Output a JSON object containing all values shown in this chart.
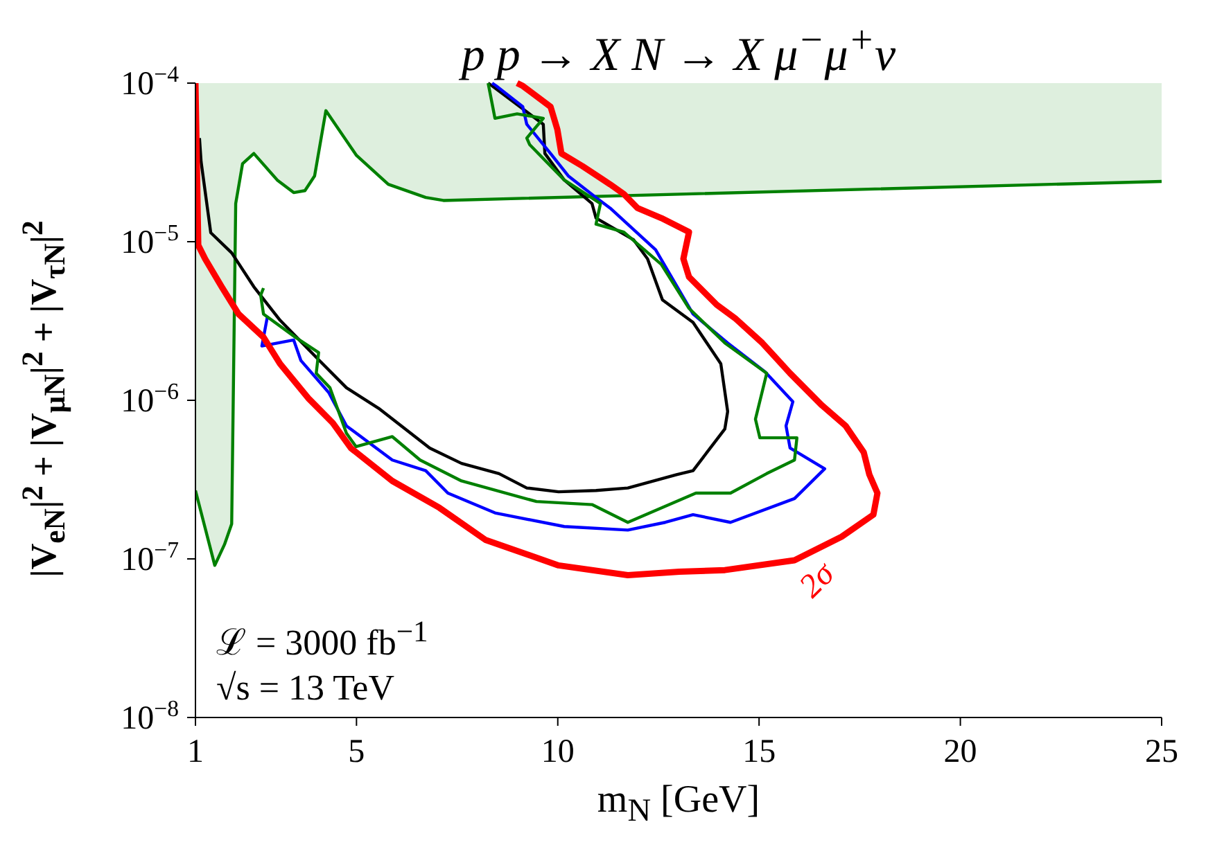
{
  "chart_data": {
    "type": "line",
    "title": "p p → X N → X μ$^{−}$μ$^{+}$ν",
    "xlabel": "m$_{N}$ [GeV]",
    "ylabel": "|V$_{eN}$|$^{2}$ + |V$_{μN}$|$^{2}$ + |V$_{τN}$|$^{2}$",
    "xlim": [
      1,
      25
    ],
    "xticks": [
      1,
      5,
      10,
      15,
      20,
      25
    ],
    "ylim": [
      1e-08,
      0.0001
    ],
    "yticks": [
      {
        "value": 1e-08,
        "label": "10$^{−8}$"
      },
      {
        "value": 1e-07,
        "label": "10$^{−7}$"
      },
      {
        "value": 1e-06,
        "label": "10$^{−6}$"
      },
      {
        "value": 1e-05,
        "label": "10$^{−5}$"
      },
      {
        "value": 0.0001,
        "label": "10$^{−4}$"
      }
    ],
    "log": "y",
    "marker": "none",
    "series": [
      {
        "color": "#008000",
        "x": [
          1,
          1.48,
          1.72,
          1.9,
          2,
          2.17,
          2.45,
          3.03,
          3.44,
          3.72,
          3.96,
          4.24,
          5,
          5.79,
          6.72,
          7.16,
          25
        ],
        "values": [
          2.7e-07,
          9.1e-08,
          1.23e-07,
          1.66e-07,
          1.74e-05,
          3.1e-05,
          3.6e-05,
          2.45e-05,
          2.04e-05,
          2.1e-05,
          2.6e-05,
          6.7e-05,
          3.5e-05,
          2.3e-05,
          1.9e-05,
          1.82e-05,
          2.4e-05
        ],
        "lower": [
          2.7e-07,
          9.1e-08,
          1.23e-07,
          1.66e-07,
          1.74e-05,
          3.1e-05,
          3.6e-05,
          2.45e-05,
          2.04e-05,
          2.1e-05,
          2.6e-05,
          6.7e-05,
          3.5e-05,
          2.3e-05,
          1.9e-05,
          1.82e-05,
          2.4e-05
        ],
        "upper": [
          0.0001,
          0.0001,
          0.0001,
          0.0001,
          0.0001,
          0.0001,
          0.0001,
          0.0001,
          0.0001,
          0.0001,
          0.0001,
          0.0001,
          0.0001,
          0.0001,
          0.0001,
          0.0001,
          0.0001
        ]
      },
      {
        "color": "#000000",
        "x": [
          1.1,
          1.14,
          1.38,
          1.9,
          2.45,
          3.1,
          4.06,
          4.75,
          5.55,
          6.82,
          7.61,
          8.54,
          9.23,
          10.02,
          10.95,
          11.74,
          12.95,
          13.36,
          14.15,
          14.22,
          14.05,
          13.36,
          12.6,
          12.23,
          11.88,
          10.95,
          10.85,
          10.16,
          9.68,
          9.64,
          8.37,
          8.27
        ],
        "values": [
          4.5e-05,
          3.2e-05,
          1.14e-05,
          8.5e-06,
          5.2e-06,
          3.2e-06,
          1.8e-06,
          1.2e-06,
          8.9e-07,
          5e-07,
          4e-07,
          3.45e-07,
          2.8e-07,
          2.65e-07,
          2.7e-07,
          2.8e-07,
          3.4e-07,
          3.6e-07,
          6.6e-07,
          8.5e-07,
          1.7e-06,
          3.1e-06,
          4.3e-06,
          7.8e-06,
          1.03e-05,
          1.41e-05,
          1.74e-05,
          2.45e-05,
          3.6e-05,
          5.5e-05,
          9.6e-05,
          0.0001
        ]
      },
      {
        "color": "#0000ff",
        "x": [
          2.79,
          2.65,
          3.44,
          3.62,
          4.31,
          4.75,
          5.89,
          6.72,
          7.27,
          8.44,
          10.16,
          11.74,
          12.67,
          13.36,
          14.29,
          15.88,
          16.63,
          15.77,
          15.67,
          15.84,
          15.15,
          14.22,
          13.36,
          12.43,
          11.3,
          10.95,
          10.26,
          9.82,
          9.23,
          9.13,
          8.47,
          8.37
        ],
        "values": [
          3.4e-06,
          2.2e-06,
          2.4e-06,
          1.78e-06,
          1.12e-06,
          6.9e-07,
          4.2e-07,
          3.6e-07,
          2.6e-07,
          1.95e-07,
          1.6e-07,
          1.52e-07,
          1.7e-07,
          1.9e-07,
          1.7e-07,
          2.4e-07,
          3.7e-07,
          5e-07,
          6.9e-07,
          9.8e-07,
          1.51e-06,
          2.3e-06,
          3.5e-06,
          8.9e-06,
          1.63e-05,
          1.9e-05,
          2.6e-05,
          3.6e-05,
          5.5e-05,
          7.1e-05,
          9.6e-05,
          0.0001
        ]
      },
      {
        "color": "#008000",
        "x": [
          8.27,
          8.44,
          8.99,
          9.64,
          9.23,
          9.3,
          10.16,
          11.06,
          10.95,
          11.64,
          12.57,
          13.26,
          14.15,
          15.19,
          14.91,
          15.02,
          15.94,
          15.88,
          15.19,
          14.29,
          13.43,
          11.74,
          10.85,
          9.47,
          7.61,
          6.58,
          5.89,
          4.99,
          4.75,
          4.34,
          4,
          4.06,
          3.48,
          2.69,
          2.62,
          2.69
        ],
        "values": [
          0.0001,
          6e-05,
          6.4e-05,
          6e-05,
          4.5e-05,
          4.1e-05,
          2.45e-05,
          1.74e-05,
          1.29e-05,
          1.15e-05,
          7.2e-06,
          3.8e-06,
          2.3e-06,
          1.48e-06,
          7.6e-07,
          5.8e-07,
          5.8e-07,
          4.2e-07,
          3.45e-07,
          2.6e-07,
          2.6e-07,
          1.7e-07,
          2.2e-07,
          2.3e-07,
          3.1e-07,
          4.2e-07,
          5.9e-07,
          5.1e-07,
          6.2e-07,
          1.2e-06,
          1.48e-06,
          2e-06,
          2.5e-06,
          3.5e-06,
          4.6e-06,
          5.1e-06
        ]
      },
      {
        "color": "#ff0000",
        "x": [
          1,
          1.07,
          1.24,
          1.65,
          2.07,
          2.69,
          3.1,
          3.82,
          4.41,
          4.86,
          5.89,
          7.06,
          8.2,
          10.02,
          11.74,
          13.02,
          14.15,
          15.88,
          17.05,
          17.84,
          17.94,
          17.74,
          17.6,
          17.15,
          16.56,
          15.77,
          15.08,
          14.4,
          13.95,
          13.26,
          13.12,
          13.26,
          12.57,
          11.98,
          11.64,
          11.3,
          10.61,
          10.09,
          9.99,
          9.82,
          9.13,
          8.99
        ],
        "values": [
          0.0001,
          9.5e-06,
          7.8e-06,
          5.2e-06,
          3.5e-06,
          2.5e-06,
          1.7e-06,
          1.02e-06,
          7.2e-07,
          5e-07,
          3.1e-07,
          2.1e-07,
          1.32e-07,
          9.1e-08,
          7.9e-08,
          8.3e-08,
          8.5e-08,
          9.8e-08,
          1.38e-07,
          1.9e-07,
          2.6e-07,
          3.4e-07,
          4.7e-07,
          6.9e-07,
          9.3e-07,
          1.48e-06,
          2.3e-06,
          3.3e-06,
          4e-06,
          6e-06,
          7.8e-06,
          1.15e-05,
          1.41e-05,
          1.63e-05,
          2e-05,
          2.3e-05,
          3e-05,
          3.6e-05,
          5.1e-05,
          7.1e-05,
          9.6e-05,
          0.0001
        ]
      }
    ],
    "annotations": [
      "2σ",
      "ℒ = 3000 fb$^{−1}$",
      "√s = 13 TeV"
    ]
  }
}
